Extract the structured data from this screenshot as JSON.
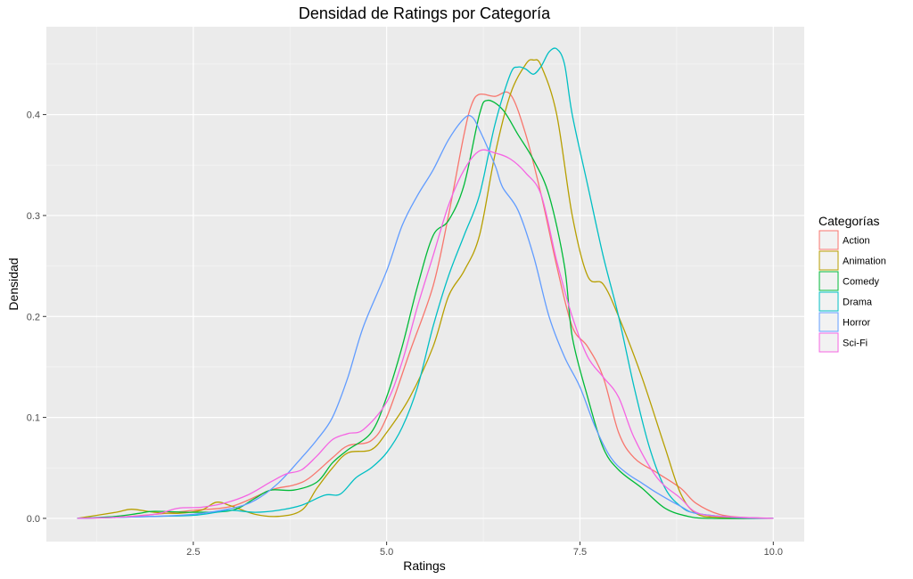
{
  "chart_data": {
    "type": "line",
    "title": "Densidad de Ratings por Categoría",
    "xlabel": "Ratings",
    "ylabel": "Densidad",
    "xlim": [
      0.6,
      10.4
    ],
    "ylim": [
      -0.023,
      0.487
    ],
    "x_ticks": [
      "2.5",
      "5.0",
      "7.5",
      "10.0"
    ],
    "y_ticks": [
      "0.0",
      "0.1",
      "0.2",
      "0.3",
      "0.4"
    ],
    "grid": true,
    "legend": {
      "title": "Categorías",
      "position": "right"
    },
    "series": [
      {
        "name": "Action",
        "color": "#F8766D",
        "points": [
          [
            1.0,
            0
          ],
          [
            1.5,
            0.001
          ],
          [
            2.0,
            0.004
          ],
          [
            2.5,
            0.008
          ],
          [
            3.0,
            0.012
          ],
          [
            3.5,
            0.028
          ],
          [
            3.8,
            0.033
          ],
          [
            4.0,
            0.04
          ],
          [
            4.3,
            0.06
          ],
          [
            4.5,
            0.072
          ],
          [
            4.8,
            0.077
          ],
          [
            5.0,
            0.1
          ],
          [
            5.3,
            0.165
          ],
          [
            5.6,
            0.23
          ],
          [
            5.8,
            0.3
          ],
          [
            6.0,
            0.38
          ],
          [
            6.1,
            0.41
          ],
          [
            6.2,
            0.42
          ],
          [
            6.4,
            0.418
          ],
          [
            6.6,
            0.42
          ],
          [
            6.8,
            0.38
          ],
          [
            7.0,
            0.32
          ],
          [
            7.2,
            0.25
          ],
          [
            7.4,
            0.19
          ],
          [
            7.6,
            0.17
          ],
          [
            7.8,
            0.14
          ],
          [
            8.0,
            0.085
          ],
          [
            8.2,
            0.06
          ],
          [
            8.5,
            0.045
          ],
          [
            8.8,
            0.03
          ],
          [
            9.0,
            0.015
          ],
          [
            9.3,
            0.004
          ],
          [
            9.6,
            0.001
          ],
          [
            10.0,
            0
          ]
        ]
      },
      {
        "name": "Animation",
        "color": "#B79F00",
        "points": [
          [
            1.0,
            0
          ],
          [
            1.5,
            0.006
          ],
          [
            1.7,
            0.009
          ],
          [
            2.0,
            0.006
          ],
          [
            2.3,
            0.005
          ],
          [
            2.6,
            0.008
          ],
          [
            2.8,
            0.016
          ],
          [
            3.0,
            0.012
          ],
          [
            3.3,
            0.004
          ],
          [
            3.6,
            0.002
          ],
          [
            3.9,
            0.008
          ],
          [
            4.1,
            0.03
          ],
          [
            4.3,
            0.05
          ],
          [
            4.5,
            0.065
          ],
          [
            4.8,
            0.068
          ],
          [
            5.0,
            0.085
          ],
          [
            5.3,
            0.12
          ],
          [
            5.6,
            0.17
          ],
          [
            5.8,
            0.22
          ],
          [
            6.0,
            0.245
          ],
          [
            6.2,
            0.28
          ],
          [
            6.4,
            0.36
          ],
          [
            6.6,
            0.42
          ],
          [
            6.8,
            0.45
          ],
          [
            6.9,
            0.454
          ],
          [
            7.0,
            0.448
          ],
          [
            7.2,
            0.4
          ],
          [
            7.4,
            0.3
          ],
          [
            7.6,
            0.24
          ],
          [
            7.8,
            0.232
          ],
          [
            8.0,
            0.2
          ],
          [
            8.3,
            0.14
          ],
          [
            8.6,
            0.07
          ],
          [
            8.8,
            0.025
          ],
          [
            9.0,
            0.005
          ],
          [
            9.3,
            0.001
          ],
          [
            10.0,
            0
          ]
        ]
      },
      {
        "name": "Comedy",
        "color": "#00BA38",
        "points": [
          [
            1.0,
            0
          ],
          [
            1.5,
            0.002
          ],
          [
            1.8,
            0.005
          ],
          [
            2.0,
            0.007
          ],
          [
            2.5,
            0.006
          ],
          [
            3.0,
            0.008
          ],
          [
            3.3,
            0.02
          ],
          [
            3.5,
            0.028
          ],
          [
            3.8,
            0.028
          ],
          [
            4.1,
            0.036
          ],
          [
            4.3,
            0.055
          ],
          [
            4.5,
            0.068
          ],
          [
            4.8,
            0.085
          ],
          [
            5.0,
            0.12
          ],
          [
            5.2,
            0.17
          ],
          [
            5.4,
            0.23
          ],
          [
            5.6,
            0.28
          ],
          [
            5.8,
            0.295
          ],
          [
            6.0,
            0.33
          ],
          [
            6.2,
            0.4
          ],
          [
            6.3,
            0.414
          ],
          [
            6.5,
            0.405
          ],
          [
            6.7,
            0.38
          ],
          [
            6.9,
            0.355
          ],
          [
            7.1,
            0.32
          ],
          [
            7.3,
            0.25
          ],
          [
            7.4,
            0.18
          ],
          [
            7.6,
            0.12
          ],
          [
            7.8,
            0.07
          ],
          [
            8.0,
            0.048
          ],
          [
            8.3,
            0.03
          ],
          [
            8.6,
            0.01
          ],
          [
            8.9,
            0.002
          ],
          [
            9.2,
            0
          ],
          [
            10.0,
            0
          ]
        ]
      },
      {
        "name": "Drama",
        "color": "#00BFC4",
        "points": [
          [
            1.0,
            0
          ],
          [
            1.5,
            0.001
          ],
          [
            2.0,
            0.002
          ],
          [
            2.5,
            0.003
          ],
          [
            2.8,
            0.006
          ],
          [
            3.0,
            0.008
          ],
          [
            3.3,
            0.006
          ],
          [
            3.6,
            0.008
          ],
          [
            3.9,
            0.013
          ],
          [
            4.2,
            0.023
          ],
          [
            4.4,
            0.024
          ],
          [
            4.6,
            0.04
          ],
          [
            4.8,
            0.05
          ],
          [
            5.0,
            0.065
          ],
          [
            5.2,
            0.09
          ],
          [
            5.4,
            0.13
          ],
          [
            5.6,
            0.19
          ],
          [
            5.8,
            0.24
          ],
          [
            6.0,
            0.28
          ],
          [
            6.2,
            0.32
          ],
          [
            6.4,
            0.39
          ],
          [
            6.6,
            0.44
          ],
          [
            6.7,
            0.447
          ],
          [
            6.8,
            0.445
          ],
          [
            6.9,
            0.44
          ],
          [
            7.0,
            0.448
          ],
          [
            7.1,
            0.462
          ],
          [
            7.2,
            0.465
          ],
          [
            7.3,
            0.45
          ],
          [
            7.4,
            0.4
          ],
          [
            7.6,
            0.33
          ],
          [
            7.8,
            0.26
          ],
          [
            8.0,
            0.2
          ],
          [
            8.2,
            0.13
          ],
          [
            8.4,
            0.07
          ],
          [
            8.6,
            0.03
          ],
          [
            8.8,
            0.012
          ],
          [
            9.0,
            0.005
          ],
          [
            9.5,
            0.001
          ],
          [
            10.0,
            0
          ]
        ]
      },
      {
        "name": "Horror",
        "color": "#619CFF",
        "points": [
          [
            1.0,
            0
          ],
          [
            1.5,
            0.001
          ],
          [
            2.0,
            0.002
          ],
          [
            2.5,
            0.004
          ],
          [
            3.0,
            0.01
          ],
          [
            3.3,
            0.018
          ],
          [
            3.6,
            0.035
          ],
          [
            3.9,
            0.06
          ],
          [
            4.1,
            0.078
          ],
          [
            4.3,
            0.1
          ],
          [
            4.5,
            0.14
          ],
          [
            4.7,
            0.19
          ],
          [
            5.0,
            0.245
          ],
          [
            5.2,
            0.29
          ],
          [
            5.4,
            0.32
          ],
          [
            5.6,
            0.345
          ],
          [
            5.8,
            0.375
          ],
          [
            6.0,
            0.396
          ],
          [
            6.1,
            0.398
          ],
          [
            6.2,
            0.385
          ],
          [
            6.4,
            0.35
          ],
          [
            6.5,
            0.328
          ],
          [
            6.7,
            0.305
          ],
          [
            6.9,
            0.26
          ],
          [
            7.1,
            0.2
          ],
          [
            7.3,
            0.16
          ],
          [
            7.5,
            0.13
          ],
          [
            7.7,
            0.09
          ],
          [
            7.9,
            0.06
          ],
          [
            8.1,
            0.045
          ],
          [
            8.3,
            0.035
          ],
          [
            8.5,
            0.025
          ],
          [
            8.8,
            0.012
          ],
          [
            9.0,
            0.005
          ],
          [
            9.5,
            0.001
          ],
          [
            10.0,
            0
          ]
        ]
      },
      {
        "name": "Sci-Fi",
        "color": "#F564E3",
        "points": [
          [
            1.0,
            0
          ],
          [
            1.5,
            0.001
          ],
          [
            2.0,
            0.004
          ],
          [
            2.3,
            0.01
          ],
          [
            2.6,
            0.011
          ],
          [
            2.9,
            0.015
          ],
          [
            3.2,
            0.023
          ],
          [
            3.5,
            0.036
          ],
          [
            3.7,
            0.044
          ],
          [
            3.9,
            0.048
          ],
          [
            4.1,
            0.062
          ],
          [
            4.3,
            0.078
          ],
          [
            4.5,
            0.084
          ],
          [
            4.7,
            0.088
          ],
          [
            5.0,
            0.115
          ],
          [
            5.2,
            0.155
          ],
          [
            5.4,
            0.21
          ],
          [
            5.6,
            0.26
          ],
          [
            5.8,
            0.31
          ],
          [
            6.0,
            0.345
          ],
          [
            6.2,
            0.364
          ],
          [
            6.4,
            0.362
          ],
          [
            6.6,
            0.356
          ],
          [
            6.8,
            0.342
          ],
          [
            7.0,
            0.32
          ],
          [
            7.2,
            0.255
          ],
          [
            7.4,
            0.2
          ],
          [
            7.6,
            0.16
          ],
          [
            7.8,
            0.14
          ],
          [
            8.0,
            0.12
          ],
          [
            8.2,
            0.08
          ],
          [
            8.5,
            0.04
          ],
          [
            8.8,
            0.02
          ],
          [
            9.0,
            0.006
          ],
          [
            9.3,
            0.002
          ],
          [
            10.0,
            0
          ]
        ]
      }
    ]
  }
}
